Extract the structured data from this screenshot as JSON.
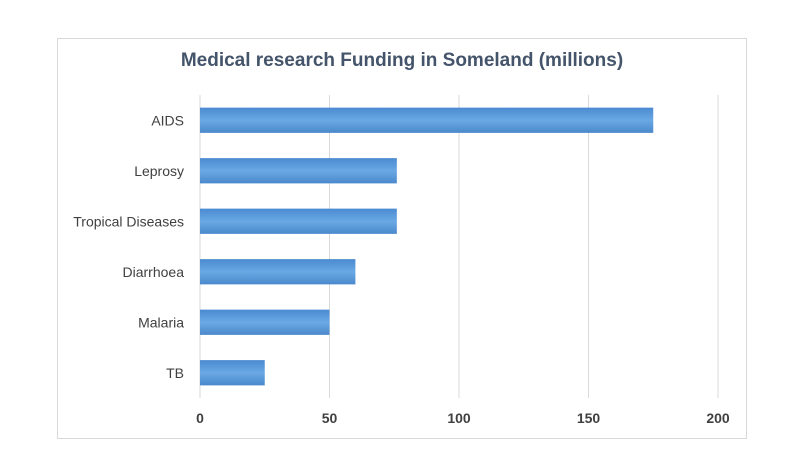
{
  "chart_data": {
    "type": "bar",
    "orientation": "horizontal",
    "title": "Medical research Funding in Someland (millions)",
    "categories": [
      "AIDS",
      "Leprosy",
      "Tropical Diseases",
      "Diarrhoea",
      "Malaria",
      "TB"
    ],
    "values": [
      175,
      76,
      76,
      60,
      50,
      25
    ],
    "xlim": [
      0,
      200
    ],
    "xticks": [
      0,
      50,
      100,
      150,
      200
    ],
    "xlabel": "",
    "ylabel": "",
    "grid": true,
    "bar_color": "#5b9bd5"
  }
}
